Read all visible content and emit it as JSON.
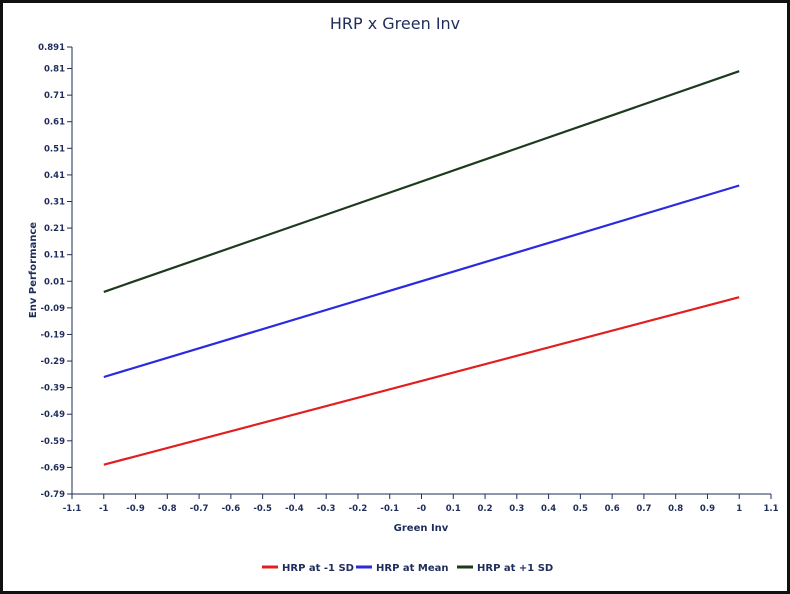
{
  "chart_data": {
    "type": "line",
    "title": "HRP x Green Inv",
    "xlabel": "Green Inv",
    "ylabel": "Env Performance",
    "xlim": [
      -1.1,
      1.1
    ],
    "ylim": [
      -0.79,
      0.891
    ],
    "x_ticks": [
      "-1.1",
      "-1",
      "-0.9",
      "-0.8",
      "-0.7",
      "-0.6",
      "-0.5",
      "-0.4",
      "-0.3",
      "-0.2",
      "-0.1",
      "-0",
      "0.1",
      "0.2",
      "0.3",
      "0.4",
      "0.5",
      "0.6",
      "0.7",
      "0.8",
      "0.9",
      "1",
      "1.1"
    ],
    "y_ticks": [
      "0.891",
      "0.81",
      "0.71",
      "0.61",
      "0.51",
      "0.41",
      "0.31",
      "0.21",
      "0.11",
      "0.01",
      "-0.09",
      "-0.19",
      "-0.29",
      "-0.39",
      "-0.49",
      "-0.59",
      "-0.69",
      "-0.79"
    ],
    "x": [
      -1,
      1
    ],
    "series": [
      {
        "name": "HRP at -1 SD",
        "color": "#e02020",
        "values": [
          -0.68,
          -0.05
        ]
      },
      {
        "name": "HRP at Mean",
        "color": "#2a2ae0",
        "values": [
          -0.35,
          0.37
        ]
      },
      {
        "name": "HRP at +1 SD",
        "color": "#1e3a1e",
        "values": [
          -0.03,
          0.8
        ]
      }
    ],
    "grid": false,
    "legend": "bottom"
  }
}
